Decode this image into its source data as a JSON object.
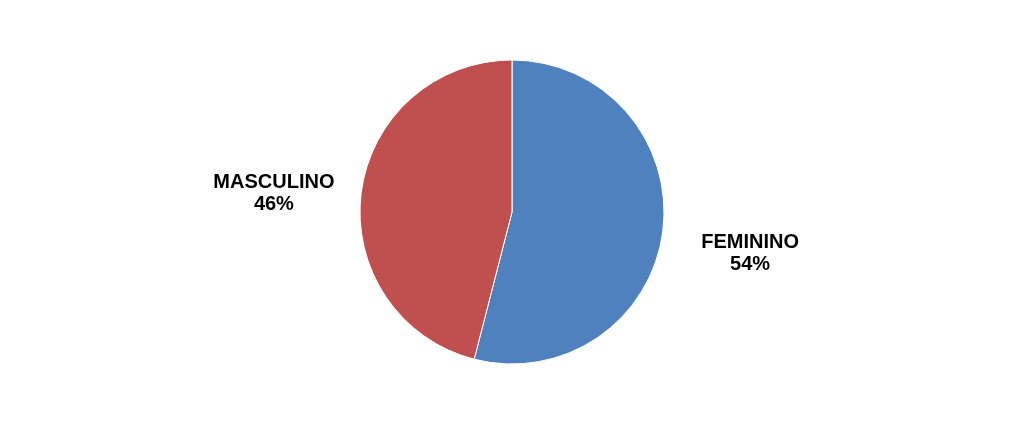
{
  "chart_data": {
    "type": "pie",
    "categories": [
      "FEMININO",
      "MASCULINO"
    ],
    "values": [
      54,
      46
    ],
    "colors": [
      "#4f81bd",
      "#c0504d"
    ],
    "value_labels": [
      "54%",
      "46%"
    ]
  }
}
